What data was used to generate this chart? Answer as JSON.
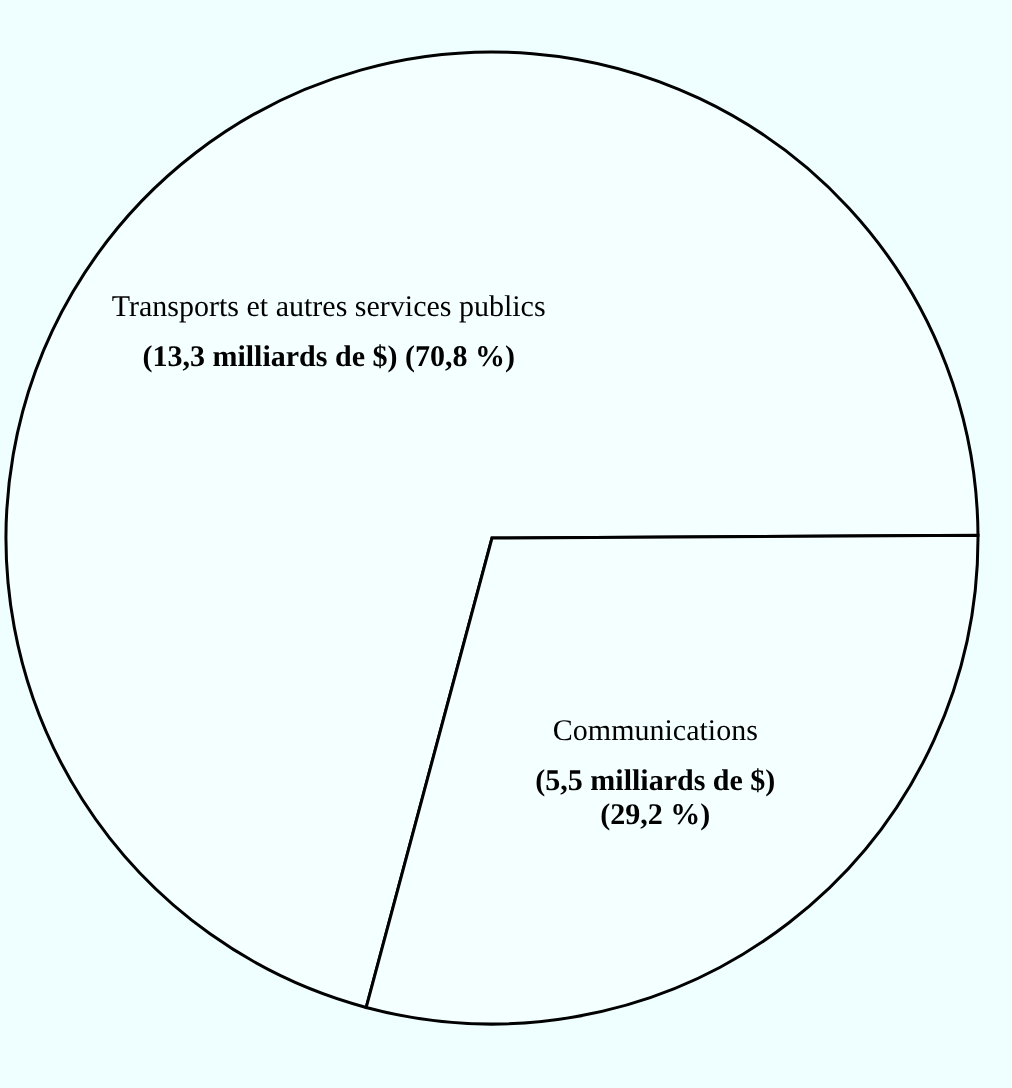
{
  "chart_data": {
    "type": "pie",
    "categories": [
      "Transports et autres services publics",
      "Communications"
    ],
    "values": [
      13.3,
      5.5
    ],
    "colors": [
      "#f4ffff",
      "#f4ffff"
    ],
    "value_labels": [
      "(13,3 milliards de $)  (70,8 %)",
      "(5,5 milliards de $)\n(29,2 %)"
    ],
    "legend": false
  }
}
